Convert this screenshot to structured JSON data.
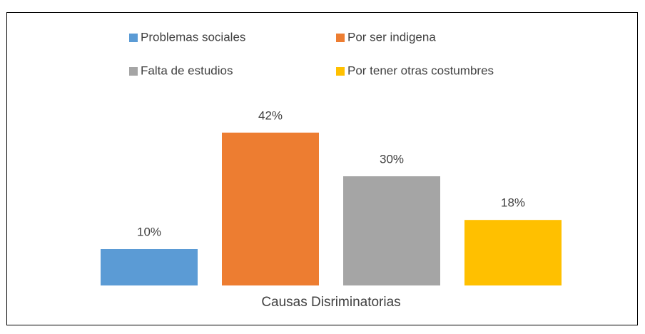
{
  "chart_data": {
    "type": "bar",
    "categories": [
      "Causas Disriminatorias"
    ],
    "series": [
      {
        "name": "Problemas sociales",
        "color": "#5b9bd5",
        "values": [
          10
        ],
        "value_labels": [
          "10%"
        ]
      },
      {
        "name": "Por ser indigena",
        "color": "#ed7d31",
        "values": [
          42
        ],
        "value_labels": [
          "42%"
        ]
      },
      {
        "name": "Falta de estudios",
        "color": "#a5a5a5",
        "values": [
          30
        ],
        "value_labels": [
          "30%"
        ]
      },
      {
        "name": "Por tener otras costumbres",
        "color": "#ffc000",
        "values": [
          18
        ],
        "value_labels": [
          "18%"
        ]
      }
    ],
    "ylim": [
      0,
      50
    ],
    "legend": "top"
  }
}
